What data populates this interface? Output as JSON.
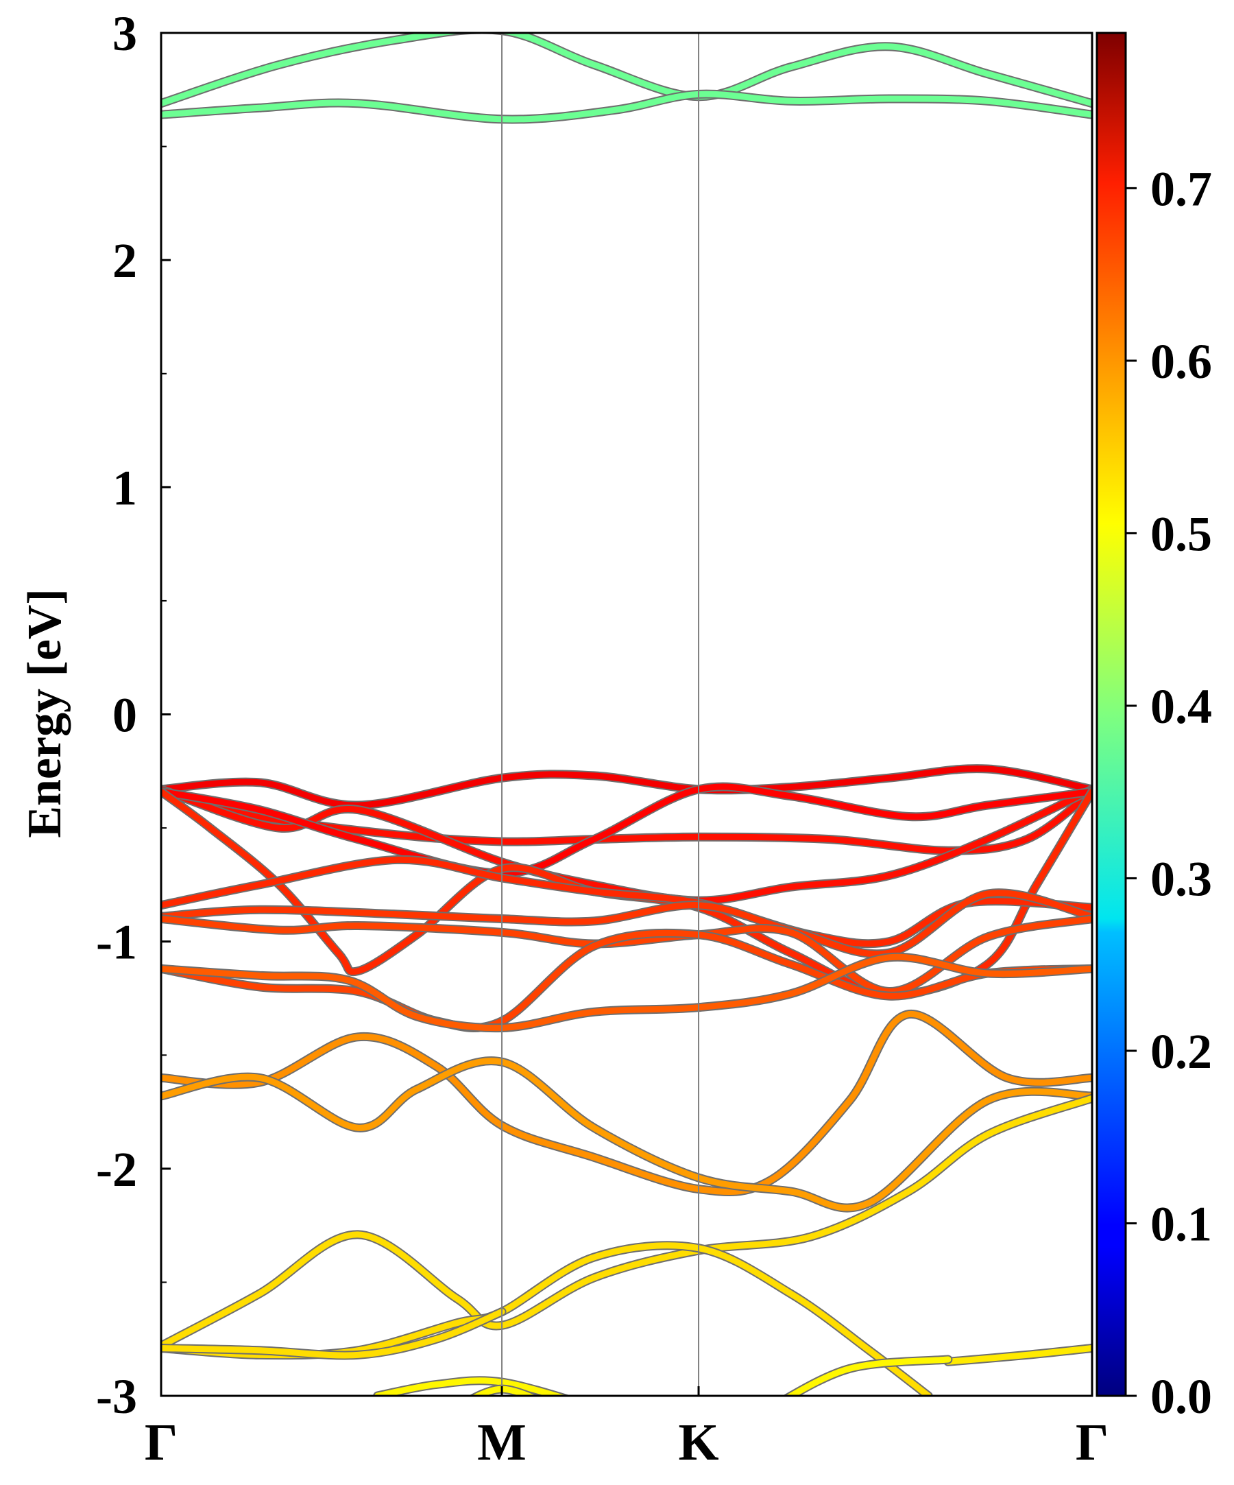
{
  "chart_data": {
    "type": "line",
    "title": "",
    "xlabel": "",
    "ylabel": "Energy [eV]",
    "ylim": [
      -3,
      3
    ],
    "yticks": [
      "3",
      "2",
      "1",
      "0",
      "-1",
      "-2",
      "-3"
    ],
    "ytick_values": [
      3,
      2,
      1,
      0,
      -1,
      -2,
      -3
    ],
    "kpoint_labels": [
      "Γ",
      "M",
      "K",
      "Γ"
    ],
    "kpoint_positions": [
      0,
      1.732,
      2.732,
      4.732
    ],
    "grid": "vertical lines at high-symmetry points",
    "colorbar": {
      "ticks": [
        "0.0",
        "0.1",
        "0.2",
        "0.3",
        "0.4",
        "0.5",
        "0.6",
        "0.7"
      ],
      "tick_values": [
        0,
        0.1,
        0.2,
        0.3,
        0.4,
        0.5,
        0.6,
        0.7
      ],
      "range": [
        0,
        0.79
      ],
      "colormap": "jet"
    },
    "series": [
      {
        "values": [
          [
            0,
            2.69
          ],
          [
            0.6,
            2.86
          ],
          [
            1.2,
            2.97
          ],
          [
            1.732,
            3.01
          ],
          [
            2.2,
            2.86
          ],
          [
            2.732,
            2.72
          ],
          [
            3.2,
            2.85
          ],
          [
            3.7,
            2.94
          ],
          [
            4.2,
            2.82
          ],
          [
            4.732,
            2.69
          ]
        ],
        "weight": 0.38
      },
      {
        "values": [
          [
            0,
            2.64
          ],
          [
            0.5,
            2.67
          ],
          [
            1.0,
            2.69
          ],
          [
            1.732,
            2.62
          ],
          [
            2.3,
            2.66
          ],
          [
            2.732,
            2.73
          ],
          [
            3.2,
            2.7
          ],
          [
            3.7,
            2.71
          ],
          [
            4.2,
            2.7
          ],
          [
            4.732,
            2.64
          ]
        ],
        "weight": 0.38
      },
      {
        "values": [
          [
            0,
            -0.33
          ],
          [
            0.5,
            -0.3
          ],
          [
            1.0,
            -0.4
          ],
          [
            1.732,
            -0.28
          ],
          [
            2.2,
            -0.27
          ],
          [
            2.732,
            -0.33
          ],
          [
            3.2,
            -0.32
          ],
          [
            3.7,
            -0.28
          ],
          [
            4.2,
            -0.24
          ],
          [
            4.732,
            -0.33
          ]
        ],
        "weight": 0.7
      },
      {
        "values": [
          [
            0,
            -0.34
          ],
          [
            0.5,
            -0.45
          ],
          [
            1.2,
            -0.53
          ],
          [
            1.732,
            -0.56
          ],
          [
            2.2,
            -0.55
          ],
          [
            2.732,
            -0.54
          ],
          [
            3.4,
            -0.55
          ],
          [
            4.0,
            -0.6
          ],
          [
            4.4,
            -0.55
          ],
          [
            4.732,
            -0.34
          ]
        ],
        "weight": 0.68
      },
      {
        "values": [
          [
            0,
            -0.33
          ],
          [
            0.6,
            -0.5
          ],
          [
            1.0,
            -0.42
          ],
          [
            1.732,
            -0.65
          ],
          [
            2.2,
            -0.75
          ],
          [
            2.732,
            -0.82
          ],
          [
            3.2,
            -0.76
          ],
          [
            3.7,
            -0.71
          ],
          [
            4.2,
            -0.55
          ],
          [
            4.732,
            -0.33
          ]
        ],
        "weight": 0.68
      },
      {
        "values": [
          [
            0,
            -0.34
          ],
          [
            0.5,
            -0.42
          ],
          [
            1.0,
            -0.55
          ],
          [
            1.732,
            -0.7
          ],
          [
            2.2,
            -0.55
          ],
          [
            2.732,
            -0.33
          ],
          [
            3.2,
            -0.36
          ],
          [
            3.8,
            -0.45
          ],
          [
            4.2,
            -0.4
          ],
          [
            4.732,
            -0.34
          ]
        ],
        "weight": 0.69
      },
      {
        "values": [
          [
            0,
            -0.34
          ],
          [
            0.25,
            -0.5
          ],
          [
            0.6,
            -0.75
          ],
          [
            0.9,
            -1.05
          ],
          [
            1.0,
            -1.13
          ],
          [
            1.3,
            -0.97
          ],
          [
            1.732,
            -0.68
          ],
          [
            2.2,
            -0.78
          ],
          [
            2.732,
            -0.85
          ],
          [
            3.2,
            -1.05
          ],
          [
            3.7,
            -1.23
          ],
          [
            4.2,
            -1.1
          ],
          [
            4.45,
            -0.75
          ],
          [
            4.732,
            -0.34
          ]
        ],
        "weight": 0.66
      },
      {
        "values": [
          [
            0,
            -0.84
          ],
          [
            0.5,
            -0.75
          ],
          [
            1.2,
            -0.64
          ],
          [
            1.732,
            -0.72
          ],
          [
            2.2,
            -0.78
          ],
          [
            2.732,
            -0.83
          ],
          [
            3.3,
            -0.97
          ],
          [
            3.7,
            -1.0
          ],
          [
            4.1,
            -0.83
          ],
          [
            4.732,
            -0.85
          ]
        ],
        "weight": 0.66
      },
      {
        "values": [
          [
            0,
            -0.89
          ],
          [
            0.5,
            -0.86
          ],
          [
            1.2,
            -0.88
          ],
          [
            1.732,
            -0.9
          ],
          [
            2.2,
            -0.91
          ],
          [
            2.732,
            -0.84
          ],
          [
            3.2,
            -0.95
          ],
          [
            3.7,
            -1.05
          ],
          [
            4.2,
            -0.79
          ],
          [
            4.732,
            -0.89
          ]
        ],
        "weight": 0.65
      },
      {
        "values": [
          [
            0,
            -0.9
          ],
          [
            0.6,
            -0.95
          ],
          [
            1.0,
            -0.93
          ],
          [
            1.732,
            -0.96
          ],
          [
            2.2,
            -1.01
          ],
          [
            2.732,
            -0.97
          ],
          [
            3.2,
            -0.96
          ],
          [
            3.7,
            -1.22
          ],
          [
            4.2,
            -0.98
          ],
          [
            4.732,
            -0.9
          ]
        ],
        "weight": 0.64
      },
      {
        "values": [
          [
            0,
            -1.12
          ],
          [
            0.5,
            -1.2
          ],
          [
            1.0,
            -1.22
          ],
          [
            1.4,
            -1.35
          ],
          [
            1.732,
            -1.35
          ],
          [
            2.2,
            -1.02
          ],
          [
            2.732,
            -0.97
          ],
          [
            3.2,
            -1.1
          ],
          [
            3.7,
            -1.24
          ],
          [
            4.2,
            -1.14
          ],
          [
            4.732,
            -1.12
          ]
        ],
        "weight": 0.64
      },
      {
        "values": [
          [
            0,
            -1.12
          ],
          [
            0.5,
            -1.15
          ],
          [
            0.95,
            -1.17
          ],
          [
            1.3,
            -1.33
          ],
          [
            1.732,
            -1.38
          ],
          [
            2.2,
            -1.31
          ],
          [
            2.732,
            -1.29
          ],
          [
            3.2,
            -1.23
          ],
          [
            3.7,
            -1.07
          ],
          [
            4.2,
            -1.14
          ],
          [
            4.732,
            -1.12
          ]
        ],
        "weight": 0.62
      },
      {
        "values": [
          [
            0,
            -1.6
          ],
          [
            0.5,
            -1.62
          ],
          [
            1.0,
            -1.42
          ],
          [
            1.4,
            -1.55
          ],
          [
            1.732,
            -1.81
          ],
          [
            2.2,
            -1.95
          ],
          [
            2.732,
            -2.09
          ],
          [
            3.1,
            -2.05
          ],
          [
            3.5,
            -1.7
          ],
          [
            3.8,
            -1.32
          ],
          [
            4.3,
            -1.6
          ],
          [
            4.732,
            -1.6
          ]
        ],
        "weight": 0.58
      },
      {
        "values": [
          [
            0,
            -1.68
          ],
          [
            0.5,
            -1.6
          ],
          [
            1.0,
            -1.82
          ],
          [
            1.3,
            -1.65
          ],
          [
            1.732,
            -1.53
          ],
          [
            2.2,
            -1.82
          ],
          [
            2.732,
            -2.04
          ],
          [
            3.2,
            -2.1
          ],
          [
            3.6,
            -2.15
          ],
          [
            4.2,
            -1.7
          ],
          [
            4.732,
            -1.68
          ]
        ],
        "weight": 0.57
      },
      {
        "values": [
          [
            0,
            -2.78
          ],
          [
            0.5,
            -2.55
          ],
          [
            1.0,
            -2.29
          ],
          [
            1.5,
            -2.57
          ],
          [
            1.732,
            -2.69
          ],
          [
            2.2,
            -2.48
          ],
          [
            2.732,
            -2.36
          ],
          [
            3.3,
            -2.3
          ],
          [
            3.8,
            -2.1
          ],
          [
            4.2,
            -1.85
          ],
          [
            4.732,
            -1.69
          ]
        ],
        "weight": 0.52
      },
      {
        "values": [
          [
            0,
            -2.79
          ],
          [
            0.5,
            -2.82
          ],
          [
            1.0,
            -2.8
          ],
          [
            1.5,
            -2.68
          ],
          [
            1.732,
            -2.63
          ],
          [
            2.2,
            -2.39
          ],
          [
            2.732,
            -2.35
          ],
          [
            3.2,
            -2.55
          ],
          [
            3.6,
            -2.8
          ],
          [
            3.9,
            -3.0
          ]
        ],
        "weight": 0.52
      },
      {
        "values": [
          [
            0,
            -2.79
          ],
          [
            0.5,
            -2.8
          ],
          [
            1.0,
            -2.82
          ],
          [
            1.4,
            -2.75
          ],
          [
            1.732,
            -2.63
          ]
        ],
        "weight": 0.52
      },
      {
        "values": [
          [
            4.0,
            -2.85
          ],
          [
            4.4,
            -2.82
          ],
          [
            4.732,
            -2.79
          ]
        ],
        "weight": 0.51
      },
      {
        "values": [
          [
            1.1,
            -3.0
          ],
          [
            1.4,
            -2.95
          ],
          [
            1.732,
            -2.94
          ],
          [
            2.2,
            -3.05
          ]
        ],
        "weight": 0.5
      },
      {
        "values": [
          [
            1.5,
            -3.05
          ],
          [
            1.732,
            -2.97
          ],
          [
            2.0,
            -3.05
          ]
        ],
        "weight": 0.5
      },
      {
        "values": [
          [
            3.1,
            -3.05
          ],
          [
            3.5,
            -2.88
          ],
          [
            4.0,
            -2.84
          ]
        ],
        "weight": 0.5
      }
    ]
  }
}
